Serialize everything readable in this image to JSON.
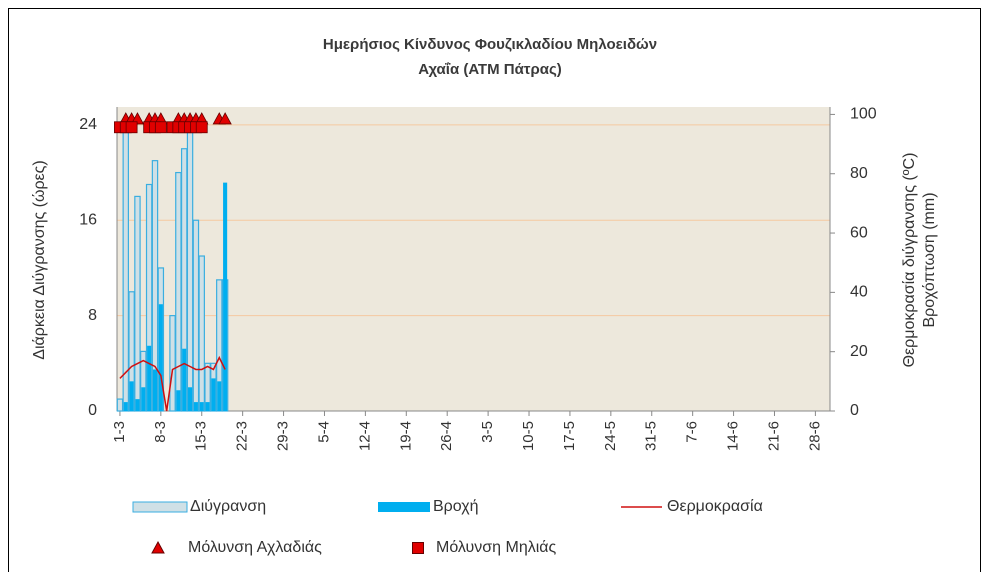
{
  "chart_data": {
    "type": "bar",
    "title": [
      "Ημερήσιος Κίνδυνος Φουζικλαδίου Μηλοειδών",
      "Αχαΐα (ΑΤΜ Πάτρας)"
    ],
    "ylabel": "Διάρκεια Διύγρανσης (ώρες)",
    "y2label": [
      "Θερμοκρασία διύγρανσης (ºC)",
      "Βροχόπτωση (mm)"
    ],
    "ylim": [
      0,
      25.5
    ],
    "yticks": [
      0,
      8,
      16,
      24
    ],
    "y2lim": [
      0,
      102.5
    ],
    "y2ticks": [
      0,
      20,
      40,
      60,
      80,
      100
    ],
    "grid": true,
    "categories": [
      "1-3",
      null,
      null,
      null,
      null,
      null,
      null,
      "8-3",
      null,
      null,
      null,
      null,
      null,
      null,
      "15-3",
      null,
      null,
      null,
      null,
      null,
      null,
      "22-3",
      null,
      null,
      null,
      null,
      null,
      null,
      "29-3",
      null,
      null,
      null,
      null,
      null,
      null,
      "5-4",
      null,
      null,
      null,
      null,
      null,
      null,
      "12-4",
      null,
      null,
      null,
      null,
      null,
      null,
      "19-4",
      null,
      null,
      null,
      null,
      null,
      null,
      "26-4",
      null,
      null,
      null,
      null,
      null,
      null,
      "3-5",
      null,
      null,
      null,
      null,
      null,
      null,
      "10-5",
      null,
      null,
      null,
      null,
      null,
      null,
      "17-5",
      null,
      null,
      null,
      null,
      null,
      null,
      "24-5",
      null,
      null,
      null,
      null,
      null,
      null,
      "31-5",
      null,
      null,
      null,
      null,
      null,
      null,
      "7-6",
      null,
      null,
      null,
      null,
      null,
      null,
      "14-6",
      null,
      null,
      null,
      null,
      null,
      null,
      "21-6",
      null,
      null,
      null,
      null,
      null,
      null,
      "28-6",
      null,
      null
    ],
    "series": [
      {
        "name": "Διύγρανση",
        "type": "wet",
        "color": "#3aaee0",
        "fill": "#cfe0e6",
        "values": [
          1,
          24,
          10,
          18,
          5,
          19,
          21,
          12,
          0,
          8,
          20,
          22,
          24,
          16,
          13,
          4,
          4,
          11,
          11,
          null,
          null,
          null,
          null,
          null,
          null,
          null,
          null,
          null,
          null,
          null,
          null,
          null,
          null,
          null,
          null,
          null,
          null,
          null,
          null,
          null,
          null,
          null,
          null,
          null,
          null,
          null,
          null,
          null,
          null,
          null,
          null,
          null,
          null,
          null,
          null,
          null,
          null,
          null,
          null,
          null,
          null,
          null,
          null,
          null,
          null,
          null,
          null,
          null,
          null,
          null,
          null,
          null,
          null,
          null,
          null,
          null,
          null,
          null,
          null,
          null,
          null,
          null,
          null,
          null,
          null,
          null,
          null,
          null,
          null,
          null,
          null,
          null,
          null,
          null,
          null,
          null,
          null,
          null,
          null,
          null,
          null,
          null,
          null,
          null,
          null,
          null,
          null,
          null,
          null,
          null,
          null,
          null,
          null,
          null,
          null,
          null,
          null,
          null,
          null,
          null,
          null,
          null
        ]
      },
      {
        "name": "Βροχή",
        "type": "rain",
        "axis": "y2",
        "color": "#00aeef",
        "values": [
          0,
          3,
          10,
          4,
          8,
          22,
          14,
          36,
          0,
          0,
          7,
          21,
          8,
          3,
          3,
          3,
          11,
          10,
          77,
          null,
          null,
          null,
          null,
          null,
          null,
          null,
          null,
          null,
          null,
          null,
          null,
          null,
          null,
          null,
          null,
          null,
          null,
          null,
          null,
          null,
          null,
          null,
          null,
          null,
          null,
          null,
          null,
          null,
          null,
          null,
          null,
          null,
          null,
          null,
          null,
          null,
          null,
          null,
          null,
          null,
          null,
          null,
          null,
          null,
          null,
          null,
          null,
          null,
          null,
          null,
          null,
          null,
          null,
          null,
          null,
          null,
          null,
          null,
          null,
          null,
          null,
          null,
          null,
          null,
          null,
          null,
          null,
          null,
          null,
          null,
          null,
          null,
          null,
          null,
          null,
          null,
          null,
          null,
          null,
          null,
          null,
          null,
          null,
          null,
          null,
          null,
          null,
          null,
          null,
          null,
          null,
          null,
          null,
          null,
          null,
          null,
          null,
          null,
          null,
          null,
          null,
          null
        ]
      },
      {
        "name": "Θερμοκρασία",
        "type": "line",
        "axis": "y2",
        "color": "#d01010",
        "values": [
          11,
          13,
          15,
          16,
          17,
          16,
          15,
          12,
          0,
          14,
          15,
          16,
          15,
          14,
          14,
          15,
          14,
          18,
          14,
          null,
          null,
          null,
          null,
          null,
          null,
          null,
          null,
          null,
          null,
          null,
          null,
          null,
          null,
          null,
          null,
          null,
          null,
          null,
          null,
          null,
          null,
          null,
          null,
          null,
          null,
          null,
          null,
          null,
          null,
          null,
          null,
          null,
          null,
          null,
          null,
          null,
          null,
          null,
          null,
          null,
          null,
          null,
          null,
          null,
          null,
          null,
          null,
          null,
          null,
          null,
          null,
          null,
          null,
          null,
          null,
          null,
          null,
          null,
          null,
          null,
          null,
          null,
          null,
          null,
          null,
          null,
          null,
          null,
          null,
          null,
          null,
          null,
          null,
          null,
          null,
          null,
          null,
          null,
          null,
          null,
          null,
          null,
          null,
          null,
          null,
          null,
          null,
          null,
          null,
          null,
          null,
          null,
          null,
          null,
          null,
          null,
          null,
          null,
          null,
          null,
          null,
          null
        ]
      },
      {
        "name": "Μόλυνση Αχλαδιάς",
        "type": "triangle",
        "color": "#e00000",
        "values": [
          null,
          24.5,
          24.5,
          24.5,
          null,
          24.5,
          24.5,
          24.5,
          null,
          null,
          24.5,
          24.5,
          24.5,
          24.5,
          24.5,
          null,
          null,
          24.5,
          24.5,
          null,
          null,
          null,
          null,
          null,
          null,
          null,
          null,
          null,
          null,
          null,
          null,
          null,
          null,
          null,
          null,
          null,
          null,
          null,
          null,
          null,
          null,
          null,
          null,
          null,
          null,
          null,
          null,
          null,
          null,
          null,
          null,
          null,
          null,
          null,
          null,
          null,
          null,
          null,
          null,
          null,
          null,
          null,
          null,
          null,
          null,
          null,
          null,
          null,
          null,
          null,
          null,
          null,
          null,
          null,
          null,
          null,
          null,
          null,
          null,
          null,
          null,
          null,
          null,
          null,
          null,
          null,
          null,
          null,
          null,
          null,
          null,
          null,
          null,
          null,
          null,
          null,
          null,
          null,
          null,
          null,
          null,
          null,
          null,
          null,
          null,
          null,
          null,
          null,
          null,
          null,
          null,
          null,
          null,
          null,
          null,
          null,
          null,
          null,
          null,
          null,
          null,
          null
        ]
      },
      {
        "name": "Μόλυνση Μηλιάς",
        "type": "square",
        "color": "#e00000",
        "values": [
          23.8,
          23.8,
          23.8,
          null,
          null,
          23.8,
          23.8,
          23.8,
          null,
          23.8,
          23.8,
          23.8,
          23.8,
          23.8,
          23.8,
          null,
          null,
          null,
          null,
          null,
          null,
          null,
          null,
          null,
          null,
          null,
          null,
          null,
          null,
          null,
          null,
          null,
          null,
          null,
          null,
          null,
          null,
          null,
          null,
          null,
          null,
          null,
          null,
          null,
          null,
          null,
          null,
          null,
          null,
          null,
          null,
          null,
          null,
          null,
          null,
          null,
          null,
          null,
          null,
          null,
          null,
          null,
          null,
          null,
          null,
          null,
          null,
          null,
          null,
          null,
          null,
          null,
          null,
          null,
          null,
          null,
          null,
          null,
          null,
          null,
          null,
          null,
          null,
          null,
          null,
          null,
          null,
          null,
          null,
          null,
          null,
          null,
          null,
          null,
          null,
          null,
          null,
          null,
          null,
          null,
          null,
          null,
          null,
          null,
          null,
          null,
          null,
          null,
          null,
          null,
          null,
          null,
          null,
          null,
          null,
          null,
          null,
          null,
          null,
          null,
          null,
          null
        ]
      }
    ]
  }
}
